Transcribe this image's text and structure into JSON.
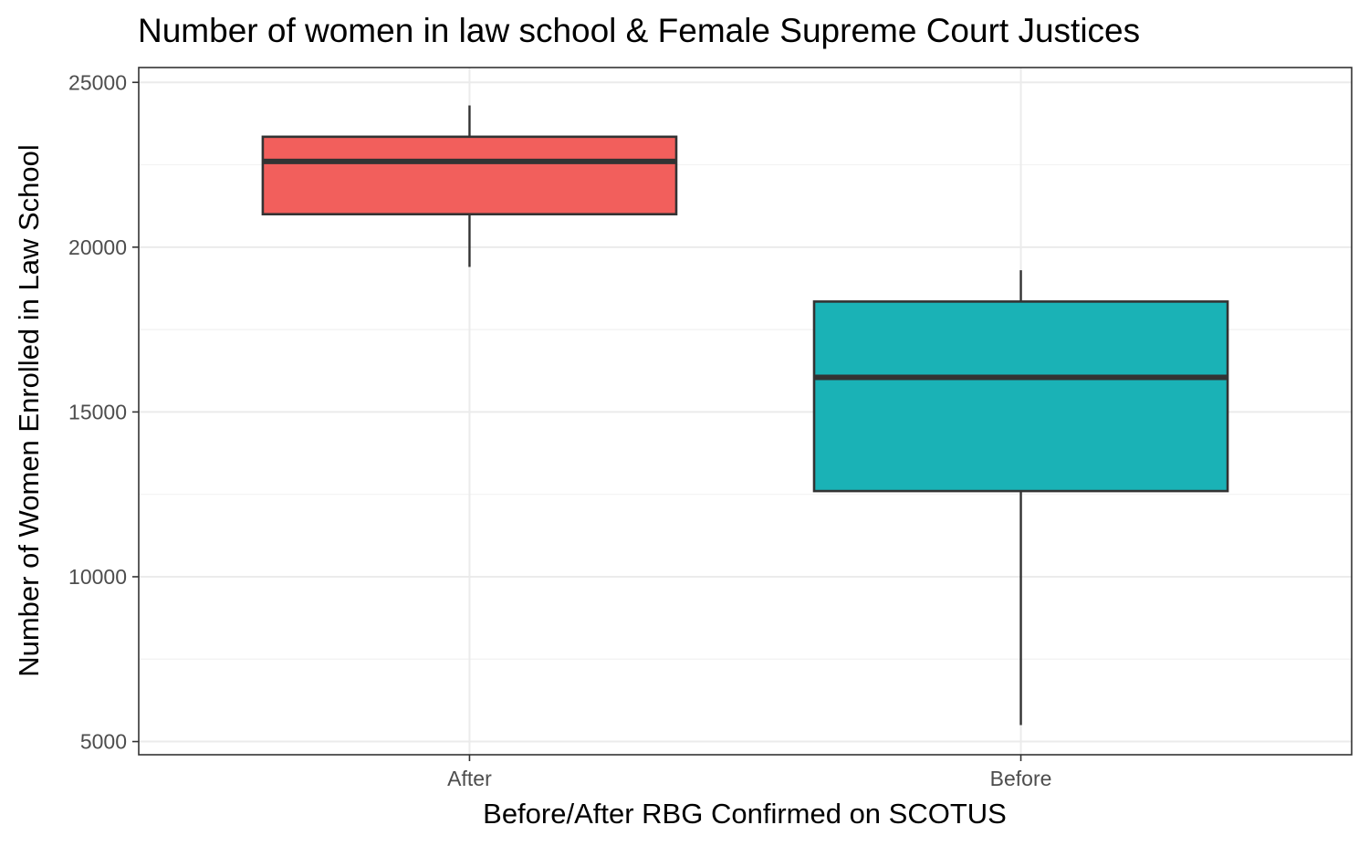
{
  "chart_data": {
    "type": "boxplot",
    "title": "Number of women in law school & Female Supreme Court Justices",
    "xlabel": "Before/After RBG Confirmed on SCOTUS",
    "ylabel": "Number of Women Enrolled in Law School",
    "ylim": [
      4600,
      25450
    ],
    "yticks": [
      5000,
      10000,
      15000,
      20000,
      25000
    ],
    "yticks_minor": [
      7500,
      12500,
      17500,
      22500
    ],
    "ytick_labels": [
      "5000",
      "10000",
      "15000",
      "20000",
      "25000"
    ],
    "grid": true,
    "legend": "none",
    "categories": [
      "After",
      "Before"
    ],
    "boxes": [
      {
        "category": "After",
        "whisker_low": 19400,
        "q1": 21000,
        "median": 22600,
        "q3": 23350,
        "whisker_high": 24300,
        "fill": "#F25F5C"
      },
      {
        "category": "Before",
        "whisker_low": 5500,
        "q1": 12600,
        "median": 16050,
        "q3": 18350,
        "whisker_high": 19300,
        "fill": "#1AB2B6"
      }
    ]
  }
}
